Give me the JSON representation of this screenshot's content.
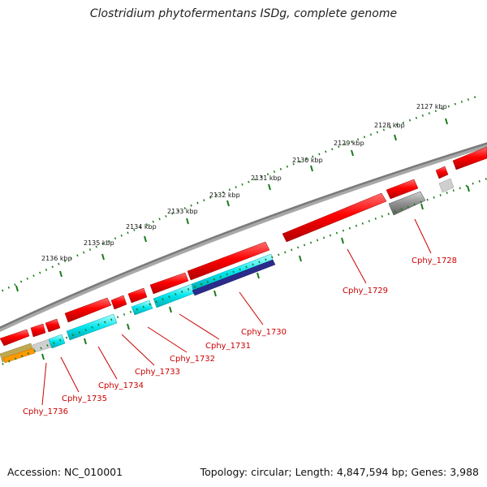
{
  "title": "Clostridium phytofermentans ISDg, complete genome",
  "footer": {
    "accession": "Accession: NC_010001",
    "summary": "Topology: circular; Length: 4,847,594 bp; Genes: 3,988"
  },
  "scale_labels": [
    "2127 kbp",
    "2128 kbp",
    "2129 kbp",
    "2130 kbp",
    "2131 kbp",
    "2132 kbp",
    "2133 kbp",
    "2134 kbp",
    "2135 kbp",
    "2136 kbp"
  ],
  "gene_labels": [
    "Cphy_1728",
    "Cphy_1729",
    "Cphy_1730",
    "Cphy_1731",
    "Cphy_1732",
    "Cphy_1733",
    "Cphy_1734",
    "Cphy_1735",
    "Cphy_1736"
  ],
  "colors": {
    "backbone": "#808080",
    "gene_red": "#ff0000",
    "gene_cyan": "#00e5ee",
    "gene_navy": "#2b2b8c",
    "gene_gray": "#666666",
    "gene_lightgray": "#c8c8c8",
    "gene_olive": "#b8a040",
    "gene_orange": "#ff9900",
    "tick_green": "#1a7a1a",
    "label_red": "#cc0000"
  }
}
